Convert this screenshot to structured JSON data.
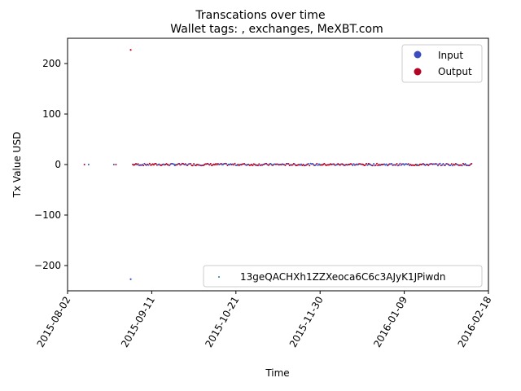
{
  "chart_data": {
    "type": "scatter",
    "title": "Transcations over time",
    "subtitle": "Wallet tags: , exchanges, MeXBT.com",
    "xlabel": "Time",
    "ylabel": "Tx Value USD",
    "xlim": [
      "2015-08-02",
      "2016-02-18"
    ],
    "ylim": [
      -250,
      250
    ],
    "x_ticks": [
      "2015-08-02",
      "2015-09-11",
      "2015-10-21",
      "2015-11-30",
      "2016-01-09",
      "2016-02-18"
    ],
    "y_ticks": [
      -200,
      -100,
      0,
      100,
      200
    ],
    "grid": false,
    "legend_upper": {
      "placement": "top-right",
      "entries": [
        {
          "label": "Input",
          "color": "#3b4cc0"
        },
        {
          "label": "Output",
          "color": "#b40426"
        }
      ]
    },
    "legend_lower": {
      "placement": "bottom-right",
      "entries": [
        {
          "label": "13geQACHXh1ZZXeoca6C6c3AJyK1JPiwdn",
          "color": "#1f77b4"
        }
      ]
    },
    "outliers": [
      {
        "x": "2015-09-01",
        "y": 227,
        "series": "Output"
      },
      {
        "x": "2015-09-01",
        "y": -227,
        "series": "Input"
      }
    ],
    "early_points": [
      {
        "x": "2015-08-10",
        "y": 0,
        "series": "Output"
      },
      {
        "x": "2015-08-12",
        "y": 0,
        "series": "Input"
      },
      {
        "x": "2015-08-24",
        "y": 0,
        "series": "Input"
      },
      {
        "x": "2015-08-25",
        "y": 0,
        "series": "Output"
      }
    ],
    "dense_band": {
      "x_start": "2015-09-02",
      "x_end": "2016-02-10",
      "y_min": -2,
      "y_max": 2
    }
  }
}
